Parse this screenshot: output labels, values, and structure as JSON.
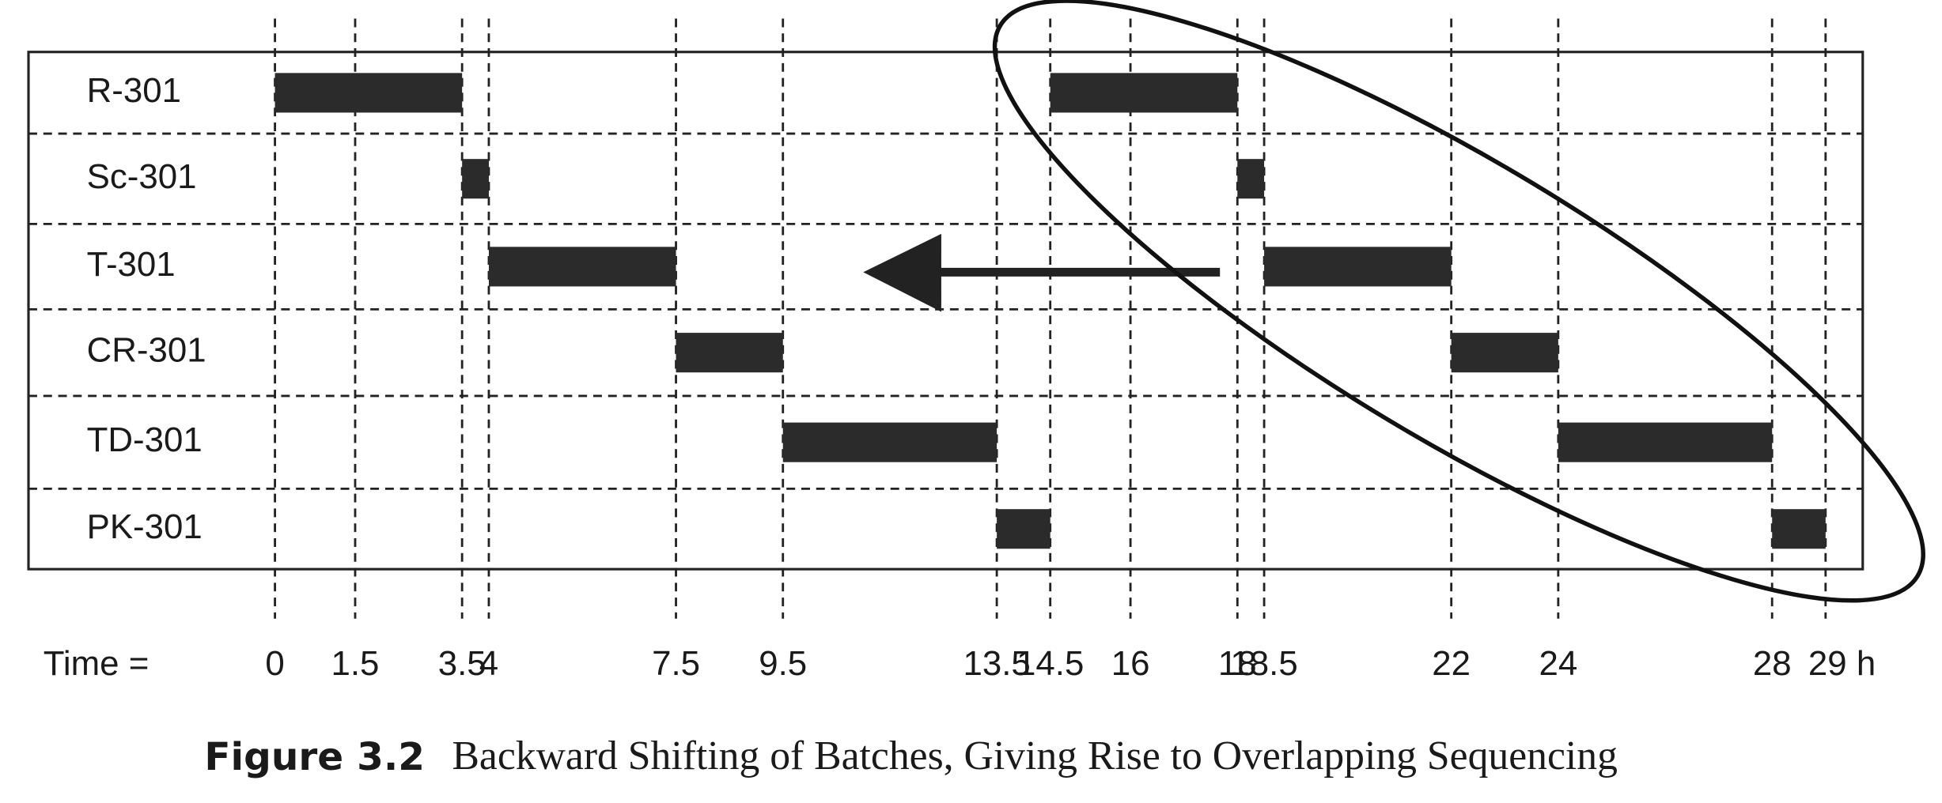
{
  "chart_data": {
    "type": "gantt",
    "x_label": "Time =",
    "xlim": [
      0,
      29
    ],
    "xticks": [
      0,
      1.5,
      3.5,
      4,
      7.5,
      9.5,
      13.5,
      14.5,
      16,
      18,
      18.5,
      22,
      24,
      28,
      {
        "value": 29,
        "label": "29 h"
      }
    ],
    "color": "#2b2b2b",
    "rows": [
      {
        "name": "R-301",
        "bars": [
          {
            "start": 0,
            "end": 3.5
          },
          {
            "start": 14.5,
            "end": 18
          }
        ]
      },
      {
        "name": "Sc-301",
        "bars": [
          {
            "start": 3.5,
            "end": 4
          },
          {
            "start": 18,
            "end": 18.5
          }
        ]
      },
      {
        "name": "T-301",
        "bars": [
          {
            "start": 4,
            "end": 7.5
          },
          {
            "start": 18.5,
            "end": 22
          }
        ]
      },
      {
        "name": "CR-301",
        "bars": [
          {
            "start": 7.5,
            "end": 9.5
          },
          {
            "start": 22,
            "end": 24
          }
        ]
      },
      {
        "name": "TD-301",
        "bars": [
          {
            "start": 9.5,
            "end": 13.5
          },
          {
            "start": 24,
            "end": 28
          }
        ]
      },
      {
        "name": "PK-301",
        "bars": [
          {
            "start": 13.5,
            "end": 14.5
          },
          {
            "start": 28,
            "end": 29
          }
        ]
      }
    ],
    "caption_label": "Figure 3.2",
    "caption": "Backward Shifting of Batches, Giving Rise to Overlapping Sequencing"
  }
}
